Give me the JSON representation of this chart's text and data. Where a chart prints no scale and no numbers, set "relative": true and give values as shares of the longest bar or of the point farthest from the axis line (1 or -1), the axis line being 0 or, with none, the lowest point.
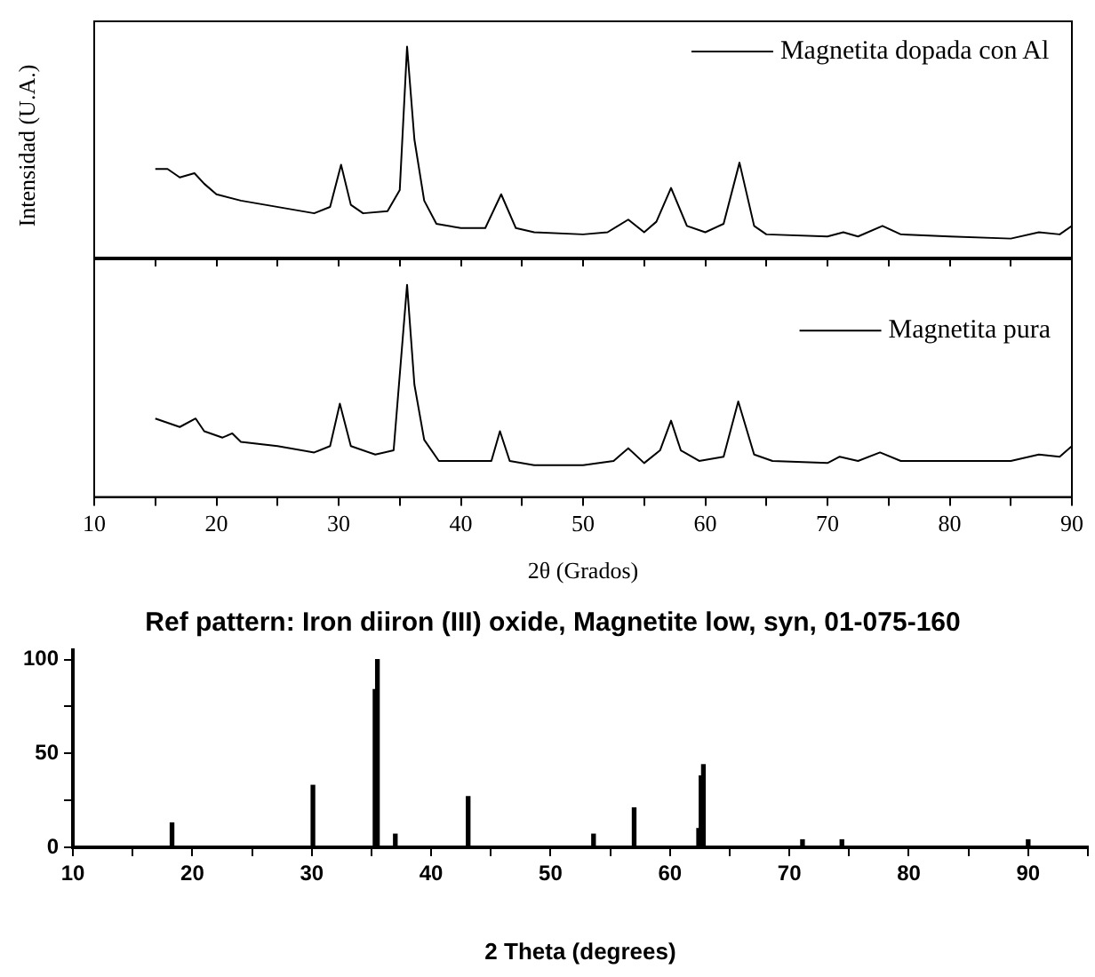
{
  "chart_data": [
    {
      "type": "line",
      "ylabel": "Intensidad (U.A.)",
      "relative": true,
      "marker": "none",
      "legend": "top right",
      "tick_labels": false,
      "x": [
        15,
        16,
        17,
        18.2,
        19,
        20,
        22,
        24,
        26,
        28,
        29.3,
        30.2,
        31,
        32,
        34,
        35,
        35.6,
        36.2,
        37,
        38,
        40,
        42,
        43.3,
        44.5,
        46,
        50,
        52,
        53.7,
        55,
        56,
        57.2,
        58.5,
        60,
        61.5,
        62.8,
        64,
        65,
        70,
        71.3,
        72.5,
        74.5,
        76,
        80,
        85,
        87.3,
        89,
        90
      ],
      "xlim": [
        10,
        90
      ],
      "xticks": [
        10,
        {
          "value": 15,
          "label": null
        },
        20,
        {
          "value": 25,
          "label": null
        },
        30,
        {
          "value": 35,
          "label": null
        },
        40,
        {
          "value": 45,
          "label": null
        },
        50,
        {
          "value": 55,
          "label": null
        },
        60,
        {
          "value": 65,
          "label": null
        },
        70,
        {
          "value": 75,
          "label": null
        },
        80,
        {
          "value": 85,
          "label": null
        },
        90
      ],
      "series": [
        {
          "name": "Magnetita dopada con Al",
          "color": "#000000",
          "values": [
            0.42,
            0.42,
            0.38,
            0.4,
            0.35,
            0.3,
            0.27,
            0.25,
            0.23,
            0.21,
            0.24,
            0.44,
            0.25,
            0.21,
            0.22,
            0.32,
            1.0,
            0.56,
            0.27,
            0.16,
            0.14,
            0.14,
            0.3,
            0.14,
            0.12,
            0.11,
            0.12,
            0.18,
            0.12,
            0.17,
            0.33,
            0.15,
            0.12,
            0.16,
            0.45,
            0.15,
            0.11,
            0.1,
            0.12,
            0.1,
            0.15,
            0.11,
            0.1,
            0.09,
            0.12,
            0.11,
            0.15
          ]
        }
      ]
    },
    {
      "type": "line",
      "xlabel": "2θ (Grados)",
      "relative": true,
      "marker": "none",
      "legend": "right",
      "tick_labels": "x",
      "x": [
        15,
        17,
        18.3,
        19,
        20.5,
        21.3,
        22,
        25,
        28,
        29.3,
        30.1,
        31,
        33,
        34.5,
        35.6,
        36.2,
        37,
        38.2,
        40,
        42.5,
        43.2,
        44,
        46,
        50,
        52.5,
        53.7,
        55,
        56.3,
        57.2,
        58,
        59.5,
        61.5,
        62.7,
        64,
        65.5,
        70,
        71,
        72.5,
        74.3,
        76,
        80,
        85,
        87.3,
        89,
        90
      ],
      "xlim": [
        10,
        90
      ],
      "xticks": [
        10,
        {
          "value": 15,
          "label": null
        },
        20,
        {
          "value": 25,
          "label": null
        },
        30,
        {
          "value": 35,
          "label": null
        },
        40,
        {
          "value": 45,
          "label": null
        },
        50,
        {
          "value": 55,
          "label": null
        },
        60,
        {
          "value": 65,
          "label": null
        },
        70,
        {
          "value": 75,
          "label": null
        },
        80,
        {
          "value": 85,
          "label": null
        },
        90
      ],
      "series": [
        {
          "name": "Magnetita pura",
          "color": "#000000",
          "values": [
            0.37,
            0.33,
            0.37,
            0.31,
            0.28,
            0.3,
            0.26,
            0.24,
            0.21,
            0.24,
            0.44,
            0.24,
            0.2,
            0.22,
            1.0,
            0.53,
            0.27,
            0.17,
            0.17,
            0.17,
            0.31,
            0.17,
            0.15,
            0.15,
            0.17,
            0.23,
            0.16,
            0.22,
            0.36,
            0.22,
            0.17,
            0.19,
            0.45,
            0.2,
            0.17,
            0.16,
            0.19,
            0.17,
            0.21,
            0.17,
            0.17,
            0.17,
            0.2,
            0.19,
            0.24
          ]
        }
      ]
    },
    {
      "type": "bar",
      "title": "Ref pattern: Iron diiron (III) oxide, Magnetite low, syn, 01-075-160",
      "xlabel": "2 Theta (degrees)",
      "x": [
        18.3,
        30.1,
        35.3,
        35.5,
        37.0,
        43.1,
        53.6,
        57.0,
        62.4,
        62.6,
        62.8,
        71.1,
        74.4,
        90.0
      ],
      "values": [
        13,
        33,
        84,
        100,
        7,
        27,
        7,
        21,
        10,
        38,
        44,
        4,
        4,
        4
      ],
      "color": "#000000",
      "xlim": [
        10,
        95
      ],
      "xticks": [
        10,
        {
          "value": 15,
          "label": null
        },
        20,
        {
          "value": 25,
          "label": null
        },
        30,
        {
          "value": 35,
          "label": null
        },
        40,
        {
          "value": 45,
          "label": null
        },
        50,
        {
          "value": 55,
          "label": null
        },
        60,
        {
          "value": 65,
          "label": null
        },
        70,
        {
          "value": 75,
          "label": null
        },
        80,
        {
          "value": 85,
          "label": null
        },
        90,
        {
          "value": 95,
          "label": null
        }
      ],
      "ylim": [
        0,
        105
      ],
      "yticks": [
        0,
        {
          "value": 25,
          "label": null
        },
        50,
        {
          "value": 75,
          "label": null
        },
        100
      ]
    }
  ]
}
